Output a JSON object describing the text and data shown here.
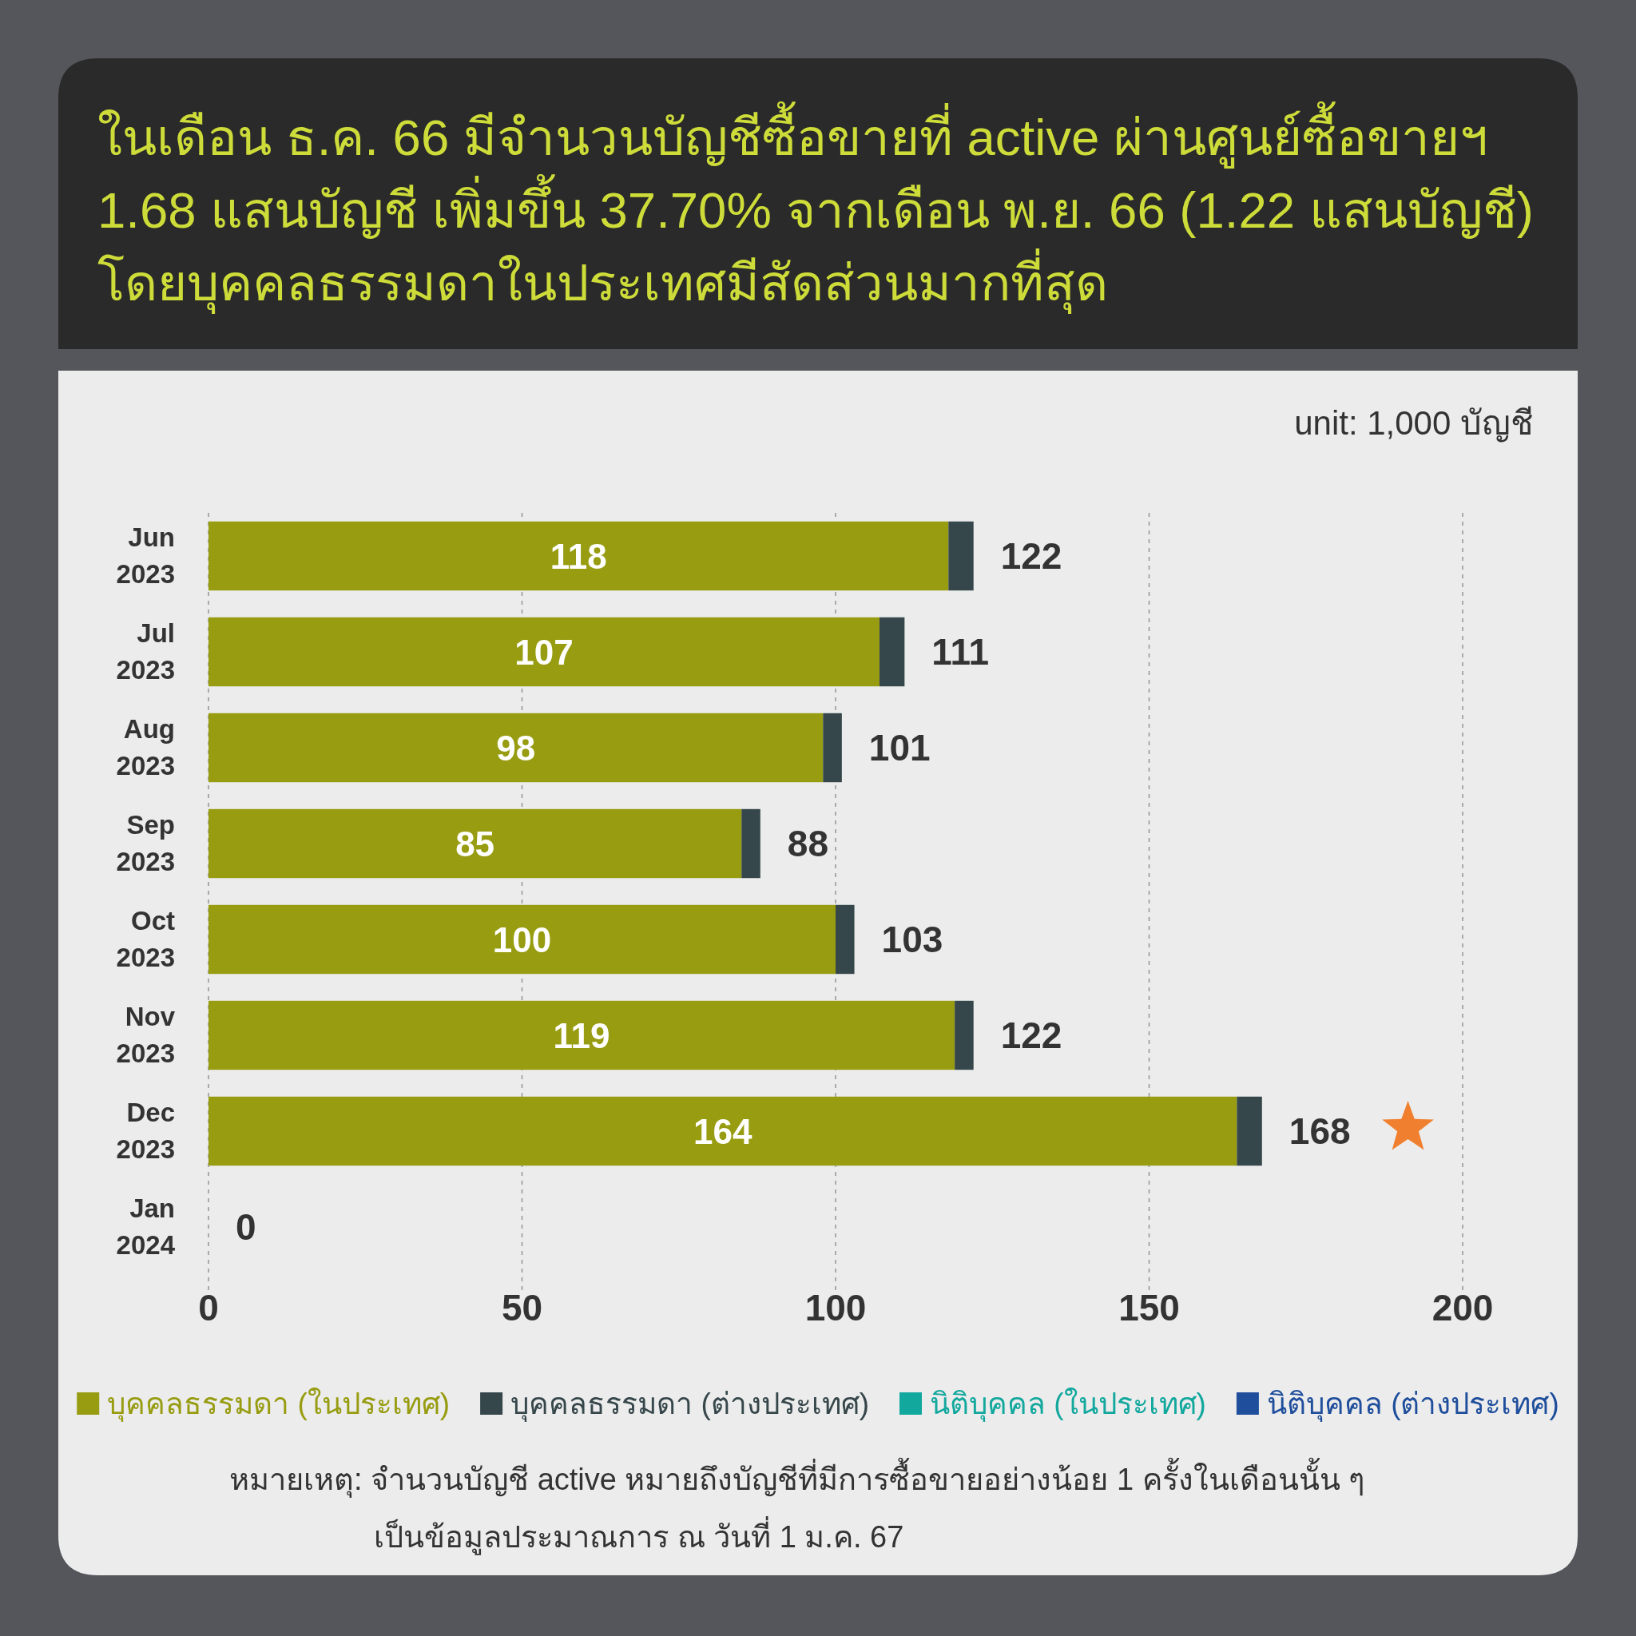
{
  "chart_data": {
    "type": "bar",
    "orientation": "horizontal",
    "stacked": true,
    "title": "ในเดือน ธ.ค. 66 มีจำนวนบัญชีซื้อขายที่ active ผ่านศูนย์ซื้อขายฯ\n1.68 แสนบัญชี เพิ่มขึ้น 37.70% จากเดือน พ.ย. 66 (1.22 แสนบัญชี)\nโดยบุคคลธรรมดาในประเทศมีสัดส่วนมากที่สุด",
    "annotations": [
      "unit: 1,000 บัญชี",
      "หมายเหตุ: จำนวนบัญชี active หมายถึงบัญชีที่มีการซื้อขายอย่างน้อย 1 ครั้งในเดือนนั้น ๆ\nเป็นข้อมูลประมาณการ ณ วันที่ 1 ม.ค. 67"
    ],
    "categories": [
      "Jun 2023",
      "Jul 2023",
      "Aug 2023",
      "Sep 2023",
      "Oct 2023",
      "Nov 2023",
      "Dec 2023",
      "Jan 2024"
    ],
    "series": [
      {
        "name": "บุคคลธรรมดา (ในประเทศ)",
        "color": "#979c10",
        "values": [
          118,
          107,
          98,
          85,
          100,
          119,
          164,
          0
        ],
        "value_labels": [
          "118",
          "107",
          "98",
          "85",
          "100",
          "119",
          "164",
          null
        ]
      },
      {
        "name": "บุคคลธรรมดา (ต่างประเทศ)",
        "color": "#36474b",
        "values": [
          4,
          4,
          3,
          3,
          3,
          3,
          4,
          0
        ]
      },
      {
        "name": "นิติบุคคล (ในประเทศ)",
        "color": "#13a89e",
        "values": [
          null,
          null,
          null,
          null,
          null,
          null,
          null,
          null
        ]
      },
      {
        "name": "นิติบุคคล (ต่างประเทศ)",
        "color": "#1f4e9c",
        "values": [
          null,
          null,
          null,
          null,
          null,
          null,
          null,
          null
        ]
      }
    ],
    "totals": [
      "122",
      "111",
      "101",
      "88",
      "103",
      "122",
      "168",
      "0"
    ],
    "xlim": [
      0,
      200
    ],
    "xticks": [
      0,
      50,
      100,
      150,
      200
    ],
    "grid": "x",
    "legend": "bottom"
  }
}
